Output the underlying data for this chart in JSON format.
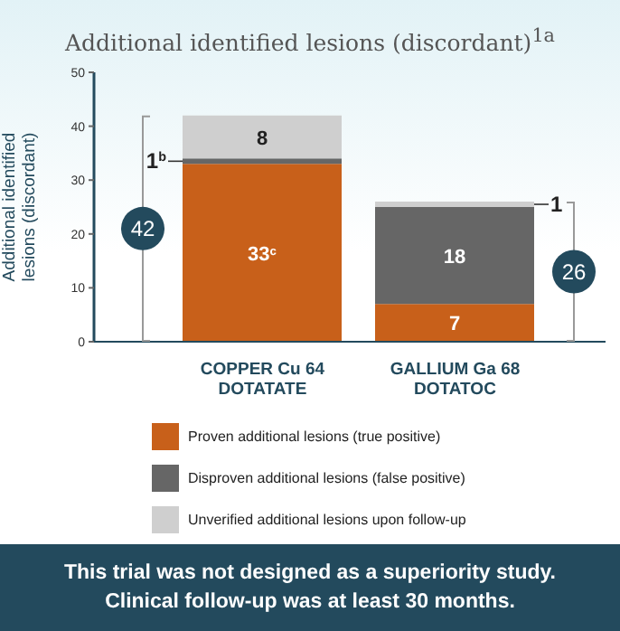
{
  "chart_data": {
    "type": "bar",
    "title": "Additional identified lesions (discordant)$^{1a}$",
    "ylabel": "Additional identified lesions (discordant)",
    "categories": [
      "COPPER Cu 64 DOTATATE",
      "GALLIUM Ga 68 DOTATOC"
    ],
    "stacked": true,
    "series": [
      {
        "name": "Proven additional lesions (true positive)",
        "color": "#c8601a",
        "values": [
          33,
          7
        ],
        "value_labels": [
          "33$^{c}$",
          "7"
        ]
      },
      {
        "name": "Disproven additional lesions (false positive)",
        "color": "#666666",
        "values": [
          1,
          18
        ],
        "value_labels": [
          "1$^{b}$",
          "18"
        ]
      },
      {
        "name": "Unverified additional lesions upon follow-up",
        "color": "#cfcfcf",
        "values": [
          8,
          1
        ],
        "value_labels": [
          "8",
          "1"
        ]
      }
    ],
    "totals": [
      "42",
      "26"
    ],
    "ylim": [
      0,
      50
    ],
    "yticks": [
      0,
      10,
      20,
      30,
      40,
      50
    ],
    "grid": false,
    "legend": "bottom",
    "annotations": [
      "This trial was not designed as a superiority study.",
      "Clinical follow-up was at least 30 months."
    ]
  }
}
